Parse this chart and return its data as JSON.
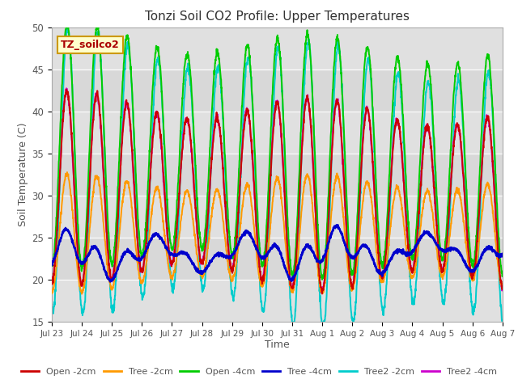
{
  "title": "Tonzi Soil CO2 Profile: Upper Temperatures",
  "ylabel": "Soil Temperature (C)",
  "xlabel": "Time",
  "ylim": [
    15,
    50
  ],
  "xlim": [
    0,
    15
  ],
  "xtick_labels": [
    "Jul 23",
    "Jul 24",
    "Jul 25",
    "Jul 26",
    "Jul 27",
    "Jul 28",
    "Jul 29",
    "Jul 30",
    "Jul 31",
    "Aug 1",
    "Aug 2",
    "Aug 3",
    "Aug 4",
    "Aug 5",
    "Aug 6",
    "Aug 7"
  ],
  "ytick_values": [
    15,
    20,
    25,
    30,
    35,
    40,
    45,
    50
  ],
  "ytick_labels": [
    "15",
    "20",
    "25",
    "30",
    "35",
    "40",
    "45",
    "50"
  ],
  "background_color": "#ffffff",
  "plot_bg_color": "#e0e0e0",
  "band_color_light": "#ebebeb",
  "band_color_dark": "#d8d8d8",
  "grid_color": "#ffffff",
  "series": {
    "Open_2cm": {
      "color": "#cc0000",
      "lw": 1.4,
      "label": "Open -2cm"
    },
    "Tree_2cm": {
      "color": "#ff9900",
      "lw": 1.4,
      "label": "Tree -2cm"
    },
    "Open_4cm": {
      "color": "#00cc00",
      "lw": 1.4,
      "label": "Open -4cm"
    },
    "Tree_4cm": {
      "color": "#0000cc",
      "lw": 1.8,
      "label": "Tree -4cm"
    },
    "Tree2_2cm": {
      "color": "#00cccc",
      "lw": 1.4,
      "label": "Tree2 -2cm"
    },
    "Tree2_4cm": {
      "color": "#cc00cc",
      "lw": 1.4,
      "label": "Tree2 -4cm"
    }
  },
  "legend_text_color": "#555555",
  "annotation_text": "TZ_soilco2",
  "annotation_color": "#aa0000",
  "annotation_bg": "#ffffcc",
  "annotation_border": "#cc9900",
  "shaded_bands": [
    {
      "ymin": 40,
      "ymax": 45,
      "color": "#d8d8d8"
    },
    {
      "ymin": 30,
      "ymax": 35,
      "color": "#d8d8d8"
    },
    {
      "ymin": 20,
      "ymax": 25,
      "color": "#d8d8d8"
    }
  ]
}
